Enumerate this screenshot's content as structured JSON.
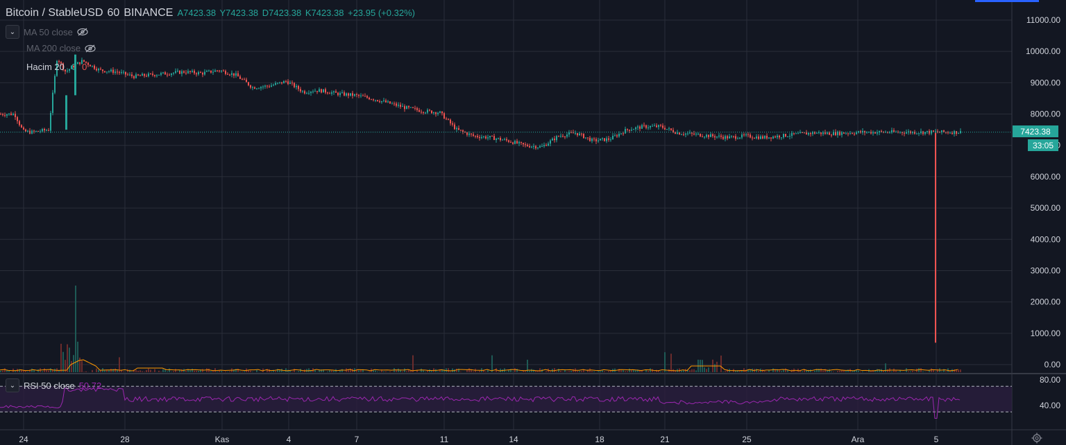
{
  "header": {
    "symbol": "Bitcoin / StableUSD",
    "interval": "60",
    "exchange": "BINANCE",
    "open": "A7423.38",
    "high": "Y7423.38",
    "low": "D7423.38",
    "close": "K7423.38",
    "change": "+23.95 (+0.32%)"
  },
  "legend": {
    "ma50": "MA 50 close",
    "ma200": "MA 200 close",
    "volume_label": "Hacim 20",
    "volume_v1": "0",
    "volume_v2": "0",
    "rsi_label": "RSI 50 close",
    "rsi_value": "50.72"
  },
  "price_tag": {
    "price": "7423.38",
    "countdown": "33:05"
  },
  "colors": {
    "up": "#26a69a",
    "down": "#ef5350",
    "rsi": "#9c27b0",
    "volume_ma": "#ff9800",
    "background": "#131722"
  },
  "icons": {
    "eye_off": "eye-off-icon",
    "chevron": "chevron-down-icon",
    "gear": "gear-icon"
  },
  "chart_data": {
    "type": "candlestick",
    "price_ylim": [
      0,
      11000
    ],
    "price_ticks": [
      "11000.00",
      "10000.00",
      "9000.00",
      "8000.00",
      "7000.00",
      "6000.00",
      "5000.00",
      "4000.00",
      "3000.00",
      "2000.00",
      "1000.00",
      "0.00"
    ],
    "rsi_ylim": [
      30,
      80
    ],
    "rsi_ticks": [
      "80.00",
      "40.00"
    ],
    "x_ticks": [
      "24",
      "28",
      "Kas",
      "4",
      "7",
      "11",
      "14",
      "18",
      "21",
      "25",
      "Ara",
      "5"
    ],
    "price_path_days": [
      0,
      0.5,
      1,
      1.5,
      2,
      2.5,
      3,
      3.5,
      4,
      5,
      6,
      7,
      8,
      9,
      10,
      11,
      12,
      13,
      14,
      15,
      16,
      17,
      17.5,
      18,
      19,
      20,
      21,
      22,
      23,
      24,
      25,
      26,
      27,
      28,
      29,
      30,
      31,
      32,
      33,
      34,
      35,
      36,
      37,
      38,
      39,
      40,
      41,
      42,
      43,
      44,
      45,
      46,
      47,
      48,
      49,
      50,
      51,
      52,
      53,
      54,
      55,
      56
    ],
    "price_path": [
      8000,
      7450,
      7420,
      7460,
      7500,
      9800,
      9350,
      9550,
      9700,
      9400,
      9350,
      9200,
      9250,
      9300,
      9350,
      9300,
      9400,
      9250,
      8850,
      8900,
      9050,
      8700,
      8750,
      8750,
      8650,
      8600,
      8500,
      8350,
      8200,
      8100,
      8050,
      7500,
      7300,
      7250,
      7150,
      7000,
      6950,
      7300,
      7400,
      7150,
      7200,
      7500,
      7600,
      7600,
      7400,
      7350,
      7300,
      7250,
      7300,
      7250,
      7300,
      7350,
      7400,
      7380,
      7400,
      7423,
      7423,
      7423,
      7423,
      7423,
      7423,
      7423
    ],
    "last_price": 7423.38,
    "spike_low": 700,
    "rsi_level_upper": 70,
    "rsi_level_lower": 30
  }
}
